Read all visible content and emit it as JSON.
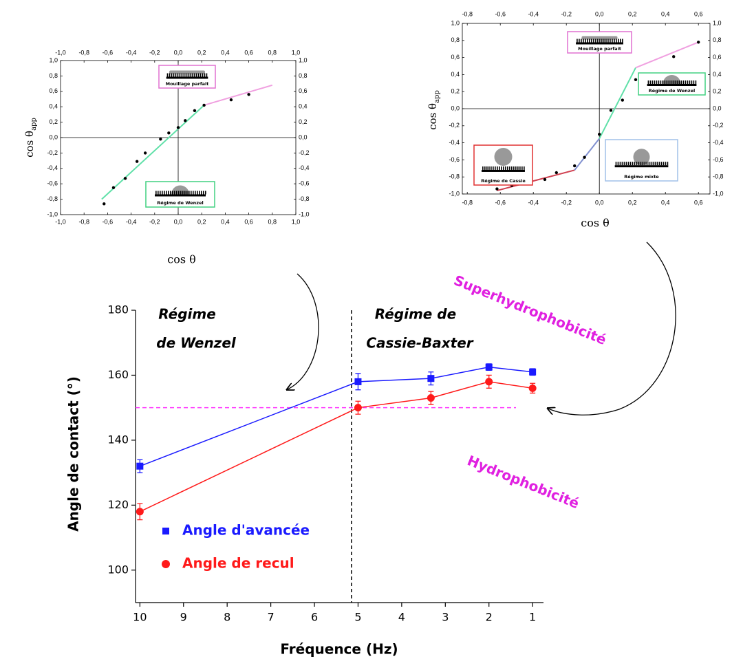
{
  "chart_data": [
    {
      "type": "scatter",
      "xlabel": "cos θ",
      "ylabel": "cos θ",
      "ylabel_sub": "app",
      "xlim": [
        -1,
        1
      ],
      "ylim": [
        -1,
        1
      ],
      "xticks": [
        {
          "value": -1,
          "label": "-1,0"
        },
        {
          "value": -0.8,
          "label": "-0,8"
        },
        {
          "value": -0.6,
          "label": "-0,6"
        },
        {
          "value": -0.4,
          "label": "-0,4"
        },
        {
          "value": -0.2,
          "label": "-0,2"
        },
        {
          "value": 0,
          "label": "0,0"
        },
        {
          "value": 0.2,
          "label": "0,2"
        },
        {
          "value": 0.4,
          "label": "0,4"
        },
        {
          "value": 0.6,
          "label": "0,6"
        },
        {
          "value": 0.8,
          "label": "0,8"
        },
        {
          "value": 1,
          "label": "1,0"
        }
      ],
      "yticks": [
        {
          "value": -1,
          "label": "-1,0"
        },
        {
          "value": -0.8,
          "label": "-0,8"
        },
        {
          "value": -0.6,
          "label": "-0,6"
        },
        {
          "value": -0.4,
          "label": "-0,4"
        },
        {
          "value": -0.2,
          "label": "-0,2"
        },
        {
          "value": 0,
          "label": "0,0"
        },
        {
          "value": 0.2,
          "label": "0,2"
        },
        {
          "value": 0.4,
          "label": "0,4"
        },
        {
          "value": 0.6,
          "label": "0,6"
        },
        {
          "value": 0.8,
          "label": "0,8"
        },
        {
          "value": 1,
          "label": "1,0"
        }
      ],
      "points": {
        "color": "#000000",
        "x": [
          -0.63,
          -0.55,
          -0.45,
          -0.35,
          -0.28,
          -0.15,
          -0.08,
          0,
          0.06,
          0.14,
          0.22,
          0.45,
          0.6
        ],
        "y": [
          -0.86,
          -0.65,
          -0.53,
          -0.31,
          -0.2,
          -0.02,
          0.06,
          0.13,
          0.22,
          0.35,
          0.42,
          0.49,
          0.56
        ]
      },
      "fit_lines": [
        {
          "color": "#5fe0a8",
          "x": [
            -0.65,
            0.22
          ],
          "y": [
            -0.8,
            0.42
          ]
        },
        {
          "color": "#f0a0e0",
          "x": [
            0.22,
            0.8
          ],
          "y": [
            0.42,
            0.68
          ]
        }
      ],
      "annotations": [
        {
          "text": "Mouillage parfait",
          "color": "#e070d0"
        },
        {
          "text": "Régime de Wenzel",
          "color": "#40d080"
        }
      ]
    },
    {
      "type": "scatter",
      "xlabel": "cos θ",
      "ylabel": "cos θ",
      "ylabel_sub": "app",
      "xlim": [
        -0.83,
        0.67
      ],
      "ylim": [
        -1,
        1
      ],
      "xticks": [
        {
          "value": -0.8,
          "label": "-0,8"
        },
        {
          "value": -0.6,
          "label": "-0,6"
        },
        {
          "value": -0.4,
          "label": "-0,4"
        },
        {
          "value": -0.2,
          "label": "-0,2"
        },
        {
          "value": 0,
          "label": "0,0"
        },
        {
          "value": 0.2,
          "label": "0,2"
        },
        {
          "value": 0.4,
          "label": "0,4"
        },
        {
          "value": 0.6,
          "label": "0,6"
        }
      ],
      "yticks": [
        {
          "value": -1,
          "label": "-1,0"
        },
        {
          "value": -0.8,
          "label": "-0,8"
        },
        {
          "value": -0.6,
          "label": "-0,6"
        },
        {
          "value": -0.4,
          "label": "-0,4"
        },
        {
          "value": -0.2,
          "label": "-0,2"
        },
        {
          "value": 0,
          "label": "0,0"
        },
        {
          "value": 0.2,
          "label": "0,2"
        },
        {
          "value": 0.4,
          "label": "0,4"
        },
        {
          "value": 0.6,
          "label": "0,6"
        },
        {
          "value": 0.8,
          "label": "0,8"
        },
        {
          "value": 1,
          "label": "1,0"
        }
      ],
      "points": {
        "color": "#000000",
        "x": [
          -0.62,
          -0.53,
          -0.43,
          -0.33,
          -0.26,
          -0.15,
          -0.09,
          0,
          0.07,
          0.14,
          0.22,
          0.45,
          0.6
        ],
        "y": [
          -0.94,
          -0.9,
          -0.87,
          -0.83,
          -0.75,
          -0.67,
          -0.57,
          -0.3,
          -0.02,
          0.1,
          0.34,
          0.61,
          0.78
        ]
      },
      "fit_lines": [
        {
          "color": "#d04050",
          "x": [
            -0.62,
            -0.15
          ],
          "y": [
            -0.96,
            -0.72
          ]
        },
        {
          "color": "#8090d0",
          "x": [
            -0.15,
            0
          ],
          "y": [
            -0.72,
            -0.35
          ]
        },
        {
          "color": "#5fe0a8",
          "x": [
            0,
            0.22
          ],
          "y": [
            -0.35,
            0.48
          ]
        },
        {
          "color": "#f0a0e0",
          "x": [
            0.22,
            0.6
          ],
          "y": [
            0.48,
            0.78
          ]
        }
      ],
      "annotations": [
        {
          "text": "Mouillage parfait",
          "color": "#e070d0"
        },
        {
          "text": "Régime de Wenzel",
          "color": "#40d080"
        },
        {
          "text": "Régime de Cassie",
          "color": "#e03030"
        },
        {
          "text": "Régime mixte",
          "color": "#a0c0e8"
        }
      ]
    },
    {
      "type": "line",
      "xlabel": "Fréquence (Hz)",
      "ylabel": "Angle de contact (°)",
      "xlim": [
        10.1,
        0.75
      ],
      "ylim": [
        90,
        180
      ],
      "xticks": [
        10,
        9,
        8,
        7,
        6,
        5,
        4,
        3,
        2,
        1
      ],
      "yticks": [
        100,
        120,
        140,
        160,
        180
      ],
      "x": [
        10,
        5,
        3.33,
        2,
        1
      ],
      "series": [
        {
          "name": "Angle d'avancée",
          "color": "#1a1aff",
          "values": [
            132,
            158,
            159,
            162.5,
            161
          ],
          "errors": [
            2,
            2.5,
            2,
            1,
            1
          ]
        },
        {
          "name": "Angle de recul",
          "color": "#ff1a1a",
          "values": [
            118,
            150,
            153,
            158,
            156
          ],
          "errors": [
            2.5,
            2,
            2,
            2,
            1.5
          ]
        }
      ],
      "threshold": 150,
      "regime_boundary": 5.15,
      "annotations": [
        {
          "text": "Régime"
        },
        {
          "text": "de Wenzel"
        },
        {
          "text": "Régime de"
        },
        {
          "text": "Cassie-Baxter"
        },
        {
          "text": "Superhydrophobicité"
        },
        {
          "text": "Hydrophobicité"
        }
      ]
    }
  ]
}
